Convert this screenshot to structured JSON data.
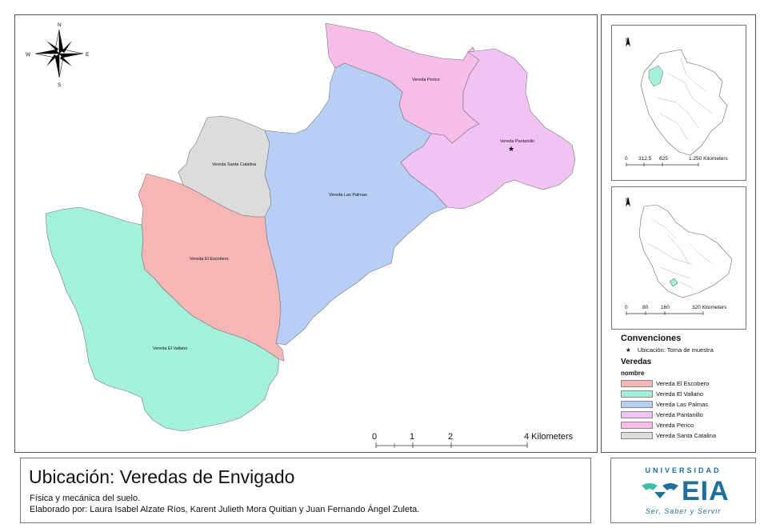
{
  "compass": {
    "n": "N",
    "s": "S",
    "e": "E",
    "w": "W"
  },
  "veredas": [
    {
      "name": "Vereda El Escobero",
      "color": "#f7b6b6"
    },
    {
      "name": "Vereda El Vallano",
      "color": "#a3f0dc"
    },
    {
      "name": "Vereda Las Palmas",
      "color": "#b8cff5"
    },
    {
      "name": "Vereda Pantanillo",
      "color": "#f3c2f5"
    },
    {
      "name": "Vereda Perico",
      "color": "#f5bde8"
    },
    {
      "name": "Vereda Santa Catalina",
      "color": "#dcdcdc"
    }
  ],
  "scale": {
    "ticks": [
      "0",
      "1",
      "2",
      "4 Kilometers"
    ]
  },
  "title": {
    "main": "Ubicación: Veredas de Envigado",
    "line1": "Física y mecánica del suelo.",
    "line2": "Elaborado por: Laura Isabel Alzate Ríos, Karent Julieth Mora Quitian y Juan Fernando Ángel Zuleta."
  },
  "inset_colombia": {
    "north": "N",
    "ticks": [
      "0",
      "312,5",
      "625",
      "1.250 Kilometers"
    ]
  },
  "inset_antioquia": {
    "north": "N",
    "ticks": [
      "0",
      "80",
      "160",
      "320 Kilometers"
    ]
  },
  "legend": {
    "conventions_title": "Convenciones",
    "point_symbol": "★",
    "point_label": "Ubicación: Toma de muestra",
    "veredas_title": "Veredas",
    "field_name": "nombre"
  },
  "logo": {
    "university": "UNIVERSIDAD",
    "name": "EIA",
    "tagline": "Ser, Saber y Servir"
  }
}
